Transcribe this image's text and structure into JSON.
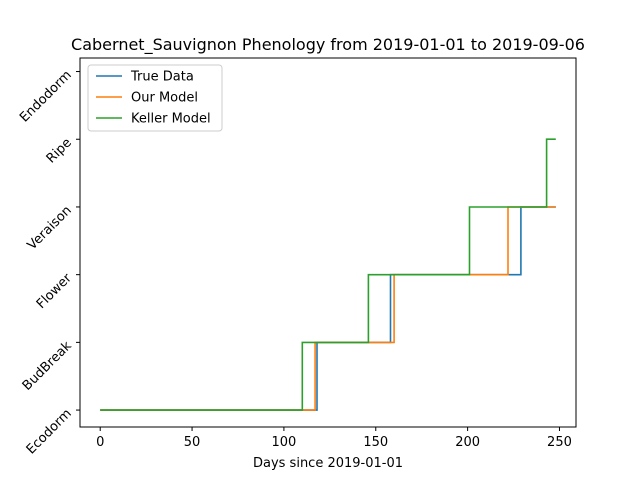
{
  "chart_data": {
    "type": "line",
    "title": "Cabernet_Sauvignon Phenology from 2019-01-01 to 2019-09-06",
    "xlabel": "Days since 2019-01-01",
    "ylabel": "",
    "xlim": [
      -11,
      259
    ],
    "ylim": [
      -0.25,
      5.2
    ],
    "x_ticks": [
      0,
      50,
      100,
      150,
      200,
      250
    ],
    "y_tick_labels": [
      "Ecodorm",
      "BudBreak",
      "Flower",
      "Veraison",
      "Ripe",
      "Endodorm"
    ],
    "grid": false,
    "legend_position": "top-left",
    "series": [
      {
        "name": "True Data",
        "color": "#1f77b4",
        "x": [
          0,
          118,
          118,
          158,
          158,
          229,
          229,
          248
        ],
        "y": [
          0,
          0,
          1,
          1,
          2,
          2,
          3,
          3
        ]
      },
      {
        "name": "Our Model",
        "color": "#ff7f0e",
        "x": [
          0,
          117,
          117,
          160,
          160,
          222,
          222,
          248
        ],
        "y": [
          0,
          0,
          1,
          1,
          2,
          2,
          3,
          3
        ]
      },
      {
        "name": "Keller Model",
        "color": "#2ca02c",
        "x": [
          0,
          110,
          110,
          146,
          146,
          201,
          201,
          243,
          243,
          248
        ],
        "y": [
          0,
          0,
          1,
          1,
          2,
          2,
          3,
          3,
          4,
          4
        ]
      }
    ]
  }
}
